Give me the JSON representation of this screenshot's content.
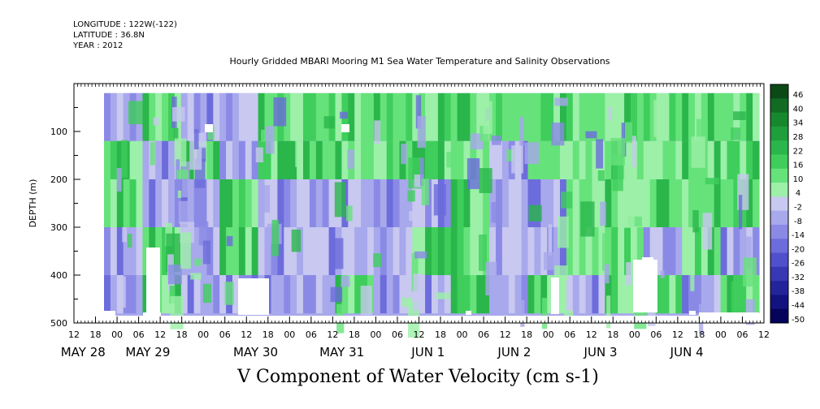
{
  "meta": {
    "longitude": "LONGITUDE : 122W(-122)",
    "latitude": "LATITUDE : 36.8N",
    "year": "YEAR : 2012"
  },
  "chart_data": {
    "type": "heatmap",
    "title": "Hourly Gridded MBARI Mooring M1 Sea Water Temperature and Salinity Observations",
    "xlabel": "V Component of Water Velocity (cm s-1)",
    "ylabel": "DEPTH (m)",
    "ylim": [
      500,
      0
    ],
    "y_ticks": [
      100,
      200,
      300,
      400,
      500
    ],
    "x_hour_ticks": [
      "12",
      "18",
      "00",
      "06",
      "12",
      "18",
      "00",
      "06",
      "12",
      "18",
      "00",
      "06",
      "12",
      "18",
      "00",
      "06",
      "12",
      "18",
      "00",
      "06",
      "12",
      "18",
      "00",
      "06",
      "12",
      "18",
      "00",
      "06",
      "12",
      "18",
      "00",
      "06",
      "12"
    ],
    "x_date_labels": [
      "MAY 28",
      "MAY 29",
      "MAY 30",
      "MAY 31",
      "JUN  1",
      "JUN  2",
      "JUN  3",
      "JUN  4"
    ],
    "colorbar": {
      "levels": [
        "46",
        "40",
        "34",
        "28",
        "22",
        "16",
        "10",
        "4",
        "-2",
        "-8",
        "-14",
        "-20",
        "-26",
        "-32",
        "-38",
        "-44",
        "-50"
      ],
      "colors": [
        "#0b4a16",
        "#116b22",
        "#17882e",
        "#1f9e3c",
        "#2bb64b",
        "#3fce5c",
        "#66e27a",
        "#9cf0a8",
        "#c8c8f0",
        "#a8a8ec",
        "#8a8ae6",
        "#6c6cdc",
        "#5050cc",
        "#3838b4",
        "#24249a",
        "#121280",
        "#04045c"
      ]
    },
    "depth_bands": [
      {
        "depth": [
          20,
          120
        ],
        "pattern": [
          "blue",
          "green",
          "blue",
          "blue",
          "green",
          "green",
          "green",
          "green",
          "green",
          "green",
          "green",
          "green",
          "green",
          "green",
          "green",
          "green",
          "green"
        ]
      },
      {
        "depth": [
          120,
          200
        ],
        "pattern": [
          "green",
          "blue",
          "green",
          "blue",
          "green",
          "green",
          "green",
          "green",
          "green",
          "green",
          "blue",
          "green",
          "green",
          "green",
          "green",
          "green",
          "green"
        ]
      },
      {
        "depth": [
          200,
          300
        ],
        "pattern": [
          "green",
          "blue",
          "blue",
          "green",
          "blue",
          "blue",
          "blue",
          "blue",
          "blue",
          "green",
          "blue",
          "blue",
          "green",
          "green",
          "green",
          "green",
          "green"
        ]
      },
      {
        "depth": [
          300,
          400
        ],
        "pattern": [
          "blue",
          "green",
          "blue",
          "green",
          "blue",
          "blue",
          "blue",
          "blue",
          "green",
          "green",
          "blue",
          "blue",
          "green",
          "green",
          "blue",
          "green",
          "blue"
        ]
      },
      {
        "depth": [
          400,
          480
        ],
        "pattern": [
          "blue",
          "green",
          "blue",
          "blue",
          "blue",
          "blue",
          "green",
          "blue",
          "blue",
          "green",
          "blue",
          "green",
          "blue",
          "green",
          "green",
          "blue",
          "green"
        ]
      }
    ]
  }
}
